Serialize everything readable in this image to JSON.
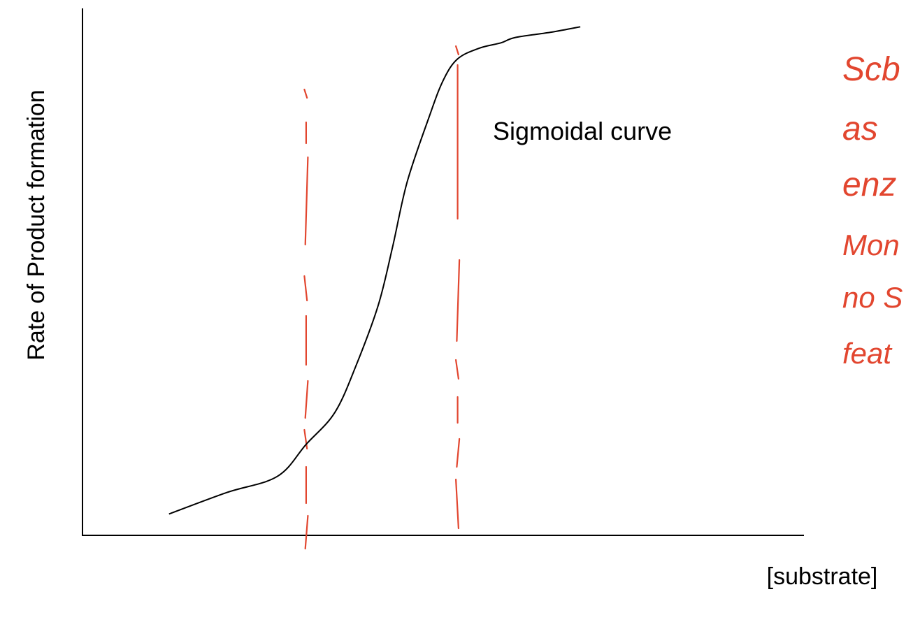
{
  "chart_data": {
    "type": "line",
    "title": "",
    "xlabel": "[substrate]",
    "ylabel": "Rate of Product formation",
    "xticks": [],
    "yticks": [],
    "grid": false,
    "legend": "none",
    "series": [
      {
        "x": [
          0.12,
          0.2,
          0.27,
          0.31,
          0.35,
          0.38,
          0.41,
          0.43,
          0.45,
          0.48,
          0.5,
          0.52,
          0.55,
          0.58,
          0.6,
          0.65,
          0.69
        ],
        "y": [
          0.04,
          0.08,
          0.11,
          0.17,
          0.23,
          0.32,
          0.43,
          0.54,
          0.66,
          0.78,
          0.85,
          0.89,
          0.91,
          0.92,
          0.93,
          0.94,
          0.95
        ],
        "color": "#000000"
      }
    ],
    "annotations": [
      {
        "text": "Sigmoidal curve",
        "x": 0.57,
        "y": 0.82
      }
    ],
    "reference_lines": [
      {
        "orientation": "vertical",
        "x": 0.31,
        "style": "dashed-handdrawn",
        "color": "#e2462f"
      },
      {
        "orientation": "vertical",
        "x": 0.52,
        "style": "dashed-handdrawn",
        "color": "#e2462f"
      }
    ],
    "handwritten_notes": {
      "color": "#e2462f",
      "lines": [
        "Scb",
        "as",
        "enz",
        "Mon",
        "no S",
        "feat"
      ]
    }
  }
}
